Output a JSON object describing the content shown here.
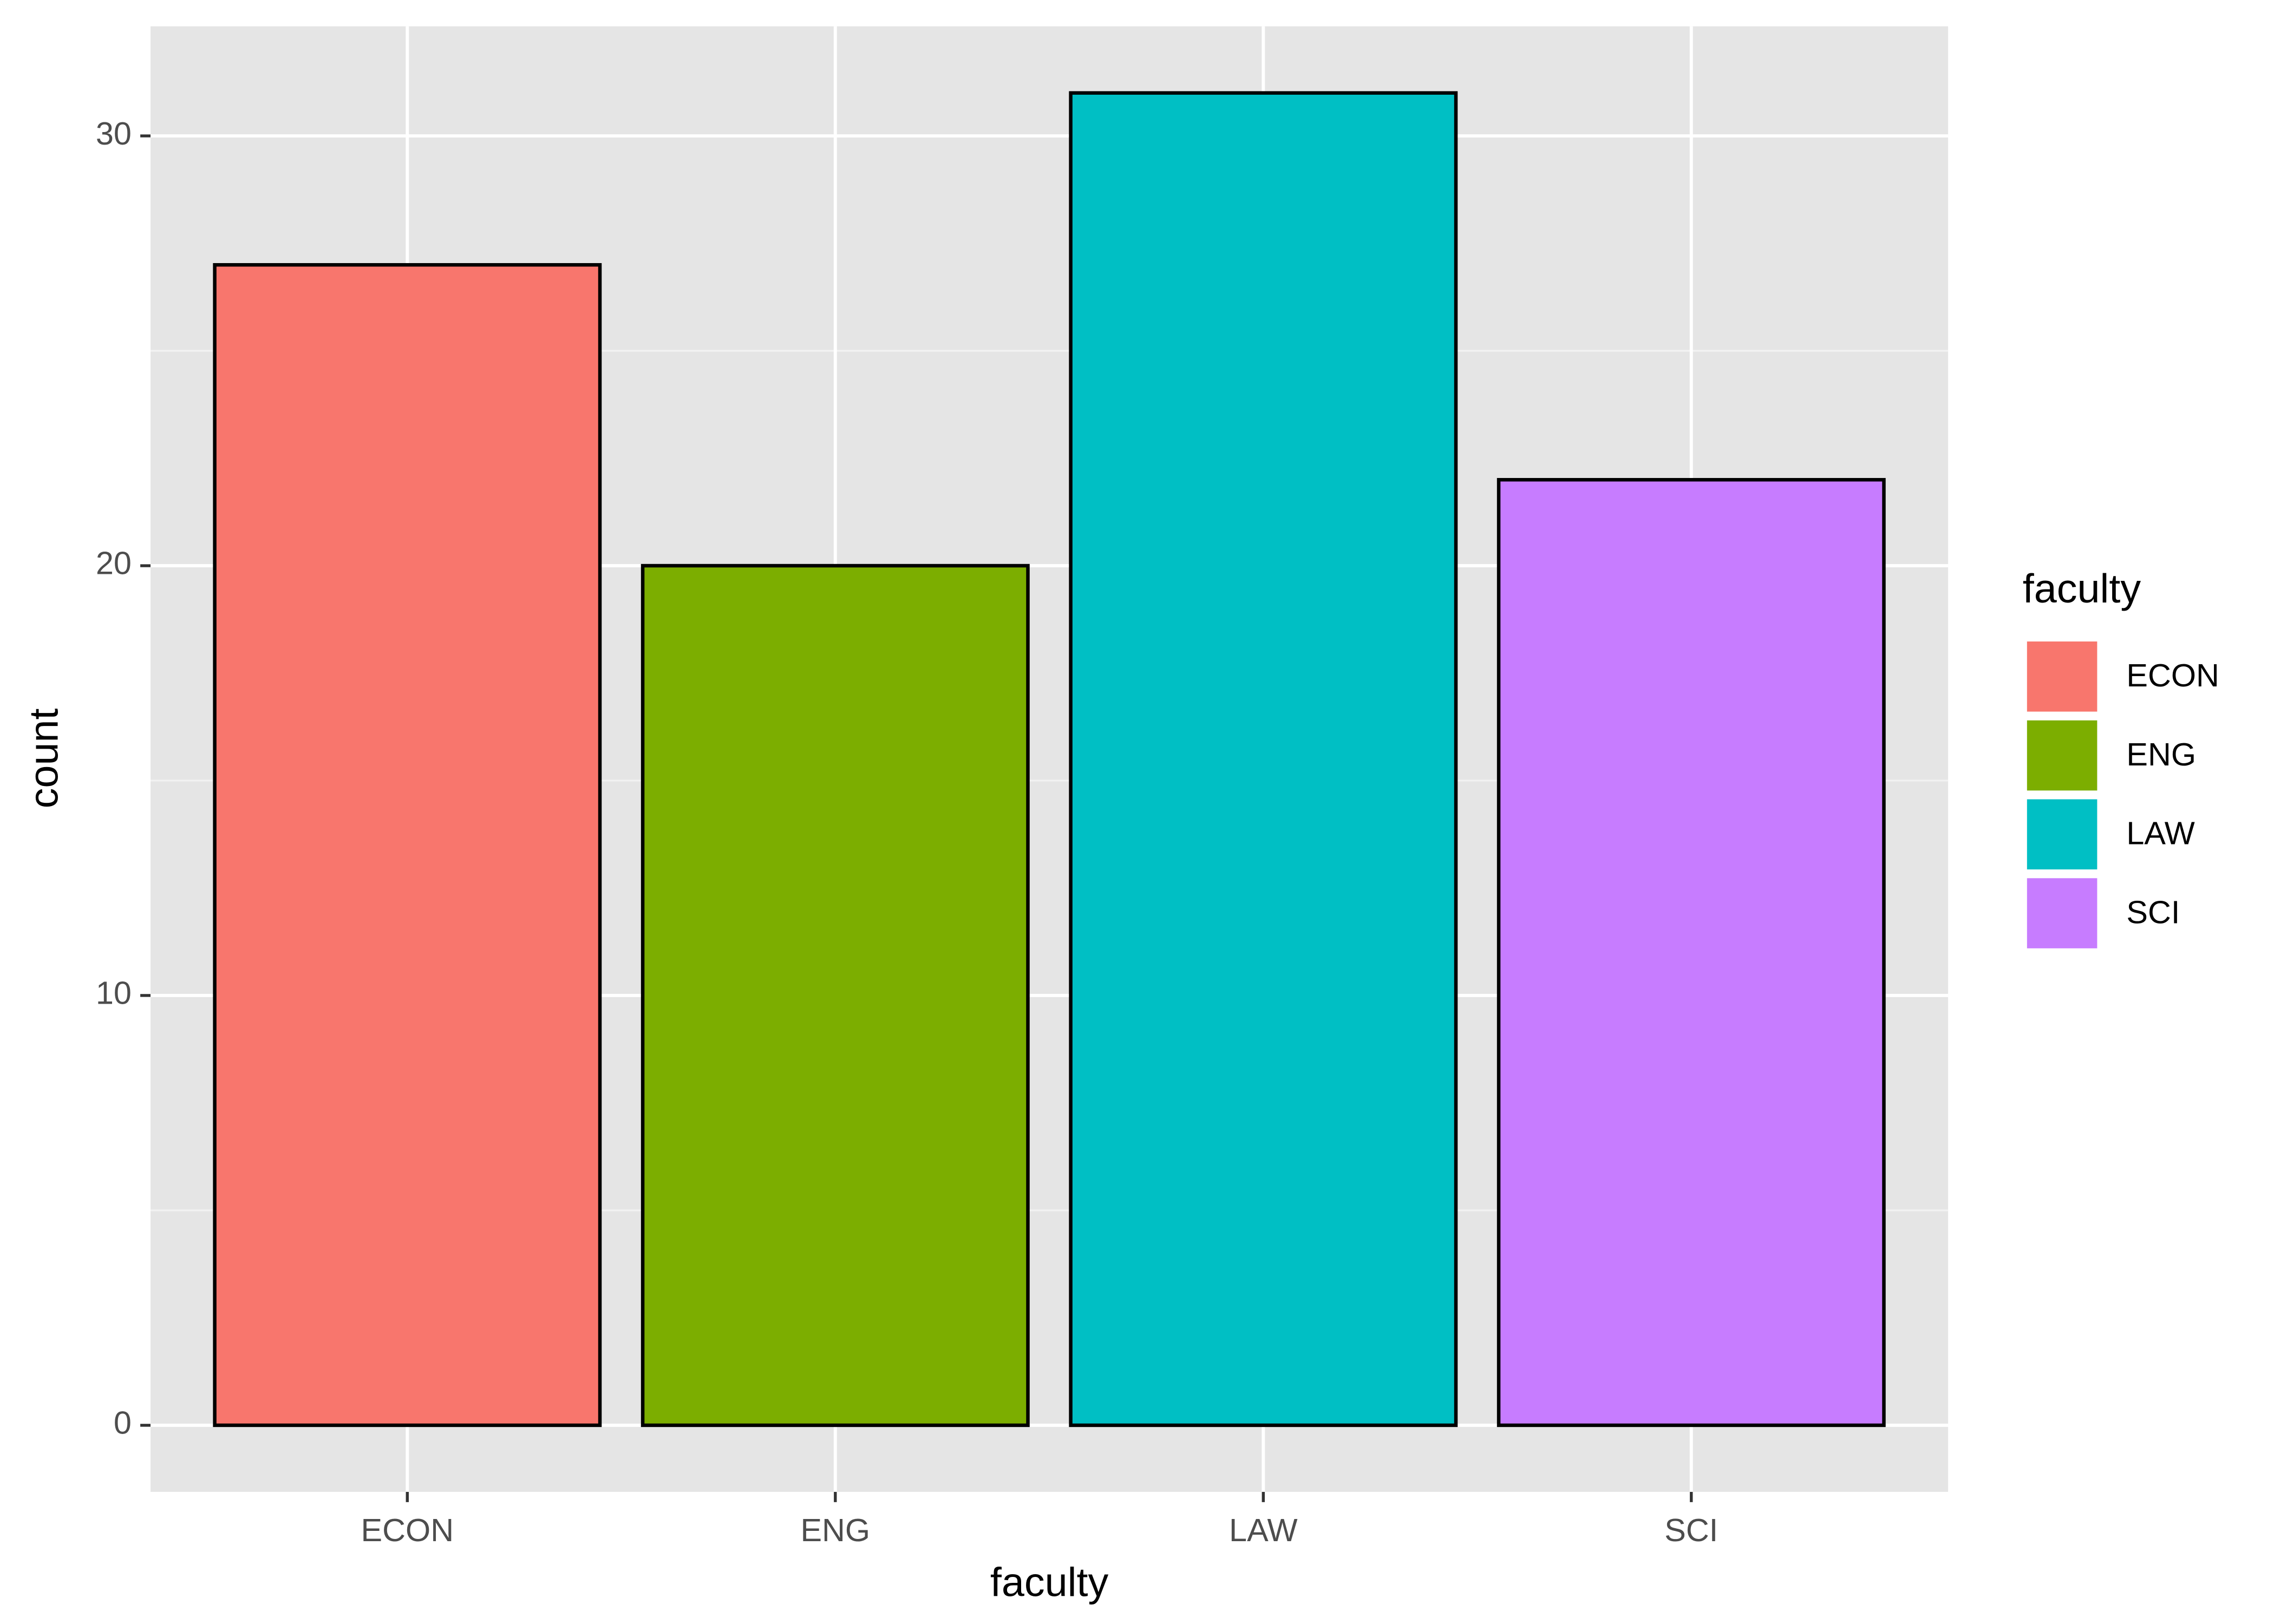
{
  "chart_data": {
    "type": "bar",
    "x_label": "faculty",
    "y_label": "count",
    "legend_title": "faculty",
    "categories": [
      "ECON",
      "ENG",
      "LAW",
      "SCI"
    ],
    "values": [
      27,
      20,
      31,
      22
    ],
    "colors": [
      "#f8766d",
      "#7cae00",
      "#00bfc4",
      "#c77cff"
    ],
    "ylim": [
      -1.55,
      32.55
    ],
    "yticks": [
      0,
      10,
      20,
      30
    ],
    "grid": true
  }
}
